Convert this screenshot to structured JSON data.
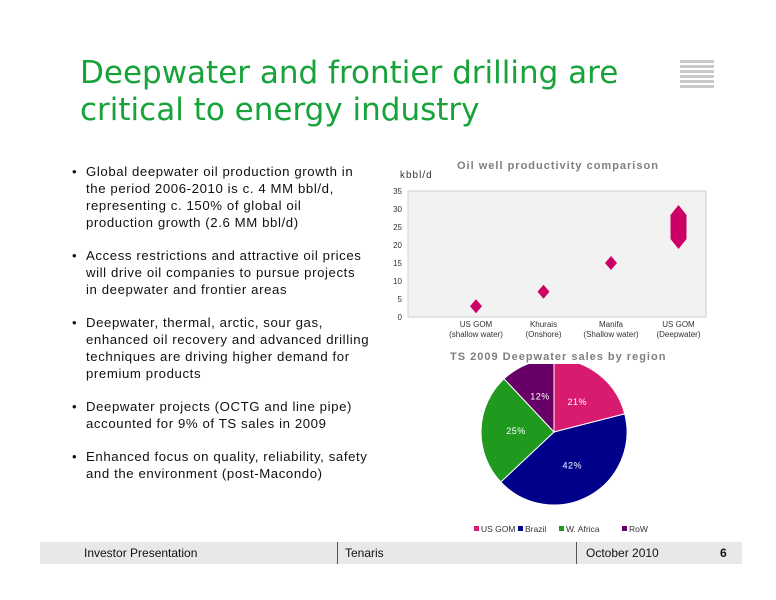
{
  "slide": {
    "title": "Deepwater and frontier drilling are critical to energy industry",
    "bullets": [
      "Global deepwater oil production growth in the period 2006-2010 is c. 4 MM bbl/d, representing c. 150% of global oil production growth (2.6 MM bbl/d)",
      "Access restrictions and attractive oil prices will drive oil companies to pursue projects in deepwater and frontier areas",
      "Deepwater, thermal, arctic, sour gas, enhanced oil recovery and advanced drilling techniques are driving higher demand for premium products",
      "Deepwater projects (OCTG and line pipe) accounted for 9% of TS sales in 2009",
      "Enhanced focus on quality, reliability, safety and the environment (post-Macondo)"
    ]
  },
  "footer": {
    "left": "Investor Presentation",
    "middle": "Tenaris",
    "date": "October 2010",
    "page": "6"
  },
  "chart_data": [
    {
      "type": "scatter",
      "title": "Oil well productivity comparison",
      "ylabel": "kbbl/d",
      "ylim": [
        0,
        35
      ],
      "yticks": [
        0,
        5,
        10,
        15,
        20,
        25,
        30,
        35
      ],
      "categories": [
        [
          "US GOM",
          "(shallow water)"
        ],
        [
          "Khurais",
          "(Onshore)"
        ],
        [
          "Manifa",
          "(Shallow water)"
        ],
        [
          "US GOM",
          "(Deepwater)"
        ]
      ],
      "values": [
        3,
        7,
        15,
        25
      ],
      "range_high": [
        null,
        null,
        null,
        30
      ],
      "range_low": [
        null,
        null,
        null,
        20
      ],
      "marker": "diamond",
      "color": "#cc0066",
      "plot_background": "#f2f2f2"
    },
    {
      "type": "pie",
      "title": "TS 2009 Deepwater sales by region",
      "slices": [
        {
          "name": "US GOM",
          "value": 21,
          "label": "21%",
          "color": "#d81b6f"
        },
        {
          "name": "Brazil",
          "value": 42,
          "label": "42%",
          "color": "#00008b"
        },
        {
          "name": "W. Africa",
          "value": 25,
          "label": "25%",
          "color": "#1f9a1f"
        },
        {
          "name": "RoW",
          "value": 12,
          "label": "12%",
          "color": "#660066"
        }
      ],
      "legend_position": "bottom"
    }
  ]
}
